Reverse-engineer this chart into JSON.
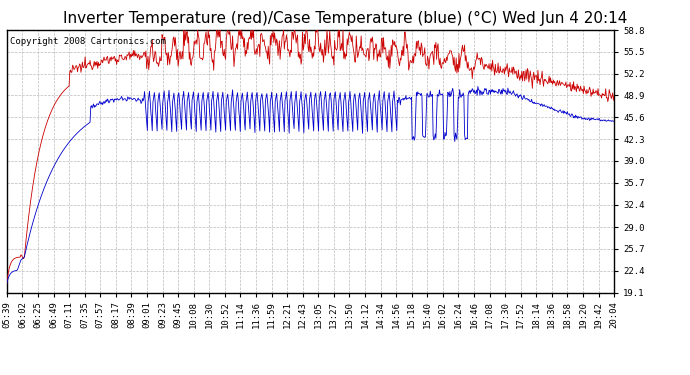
{
  "title": "Inverter Temperature (red)/Case Temperature (blue) (°C) Wed Jun 4 20:14",
  "copyright": "Copyright 2008 Cartronics.com",
  "background_color": "#ffffff",
  "plot_background": "#ffffff",
  "grid_color": "#bbbbbb",
  "yticks": [
    19.1,
    22.4,
    25.7,
    29.0,
    32.4,
    35.7,
    39.0,
    42.3,
    45.6,
    48.9,
    52.2,
    55.5,
    58.8
  ],
  "ylim": [
    19.1,
    58.8
  ],
  "xtick_labels": [
    "05:39",
    "06:02",
    "06:25",
    "06:49",
    "07:11",
    "07:35",
    "07:57",
    "08:17",
    "08:39",
    "09:01",
    "09:23",
    "09:45",
    "10:08",
    "10:30",
    "10:52",
    "11:14",
    "11:36",
    "11:59",
    "12:21",
    "12:43",
    "13:05",
    "13:27",
    "13:50",
    "14:12",
    "14:34",
    "14:56",
    "15:18",
    "15:40",
    "16:02",
    "16:24",
    "16:46",
    "17:08",
    "17:30",
    "17:52",
    "18:14",
    "18:36",
    "18:58",
    "19:20",
    "19:42",
    "20:04"
  ],
  "red_color": "#cc0000",
  "blue_color": "#0000cc",
  "title_fontsize": 11,
  "tick_fontsize": 6.5,
  "copyright_fontsize": 6.5
}
